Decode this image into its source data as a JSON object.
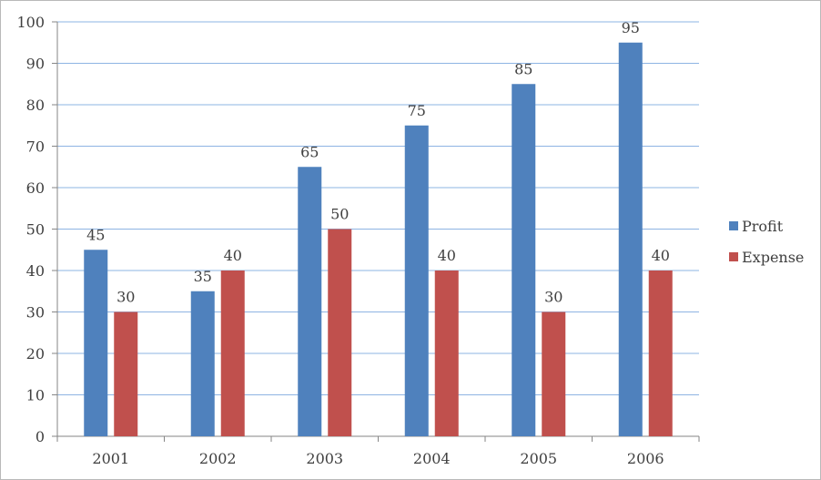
{
  "chart_data": {
    "type": "bar",
    "title": "",
    "xlabel": "",
    "ylabel": "",
    "categories": [
      "2001",
      "2002",
      "2003",
      "2004",
      "2005",
      "2006"
    ],
    "ylim": [
      0,
      100
    ],
    "yticks": [
      0,
      10,
      20,
      30,
      40,
      50,
      60,
      70,
      80,
      90,
      100
    ],
    "grid": true,
    "legend_position": "right",
    "series": [
      {
        "name": "Profit",
        "color": "#4F81BD",
        "values": [
          45,
          35,
          65,
          75,
          85,
          95
        ]
      },
      {
        "name": "Expense",
        "color": "#C0504D",
        "values": [
          30,
          40,
          50,
          40,
          30,
          40
        ]
      }
    ]
  }
}
